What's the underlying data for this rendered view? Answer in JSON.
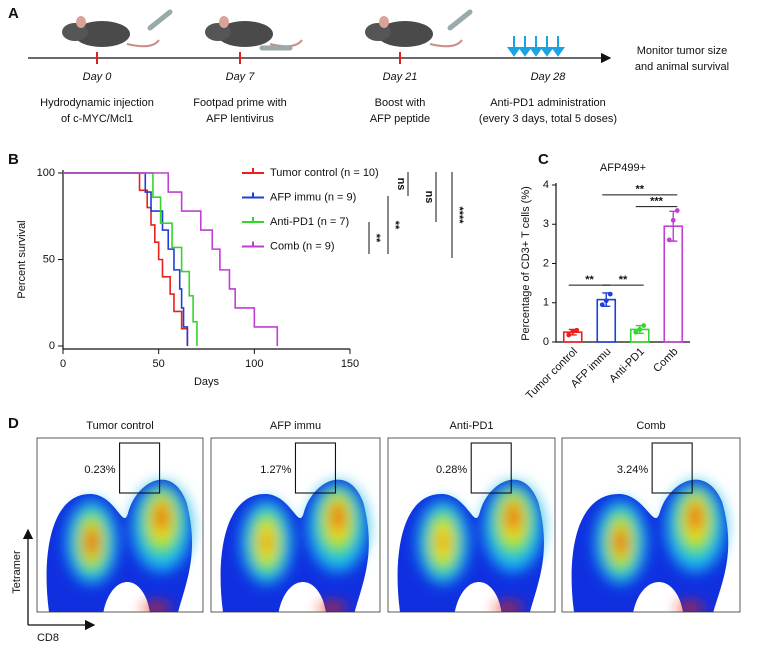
{
  "panel_a": {
    "label": "A",
    "days": [
      {
        "day": "Day 0",
        "description": [
          "Hydrodynamic injection",
          "of  c-MYC/Mcl1"
        ]
      },
      {
        "day": "Day 7",
        "description": [
          "Footpad prime with",
          "AFP lentivirus"
        ]
      },
      {
        "day": "Day 21",
        "description": [
          "Boost with",
          "AFP peptide"
        ]
      },
      {
        "day": "Day 28",
        "description": [
          "Anti-PD1 administration",
          "(every 3 days, total 5 doses)"
        ]
      }
    ],
    "end_label": [
      "Monitor tumor size",
      "and animal survival"
    ]
  },
  "chart_data": [
    {
      "type": "step",
      "label": "B",
      "x_label": "Days",
      "y_label": "Percent survival",
      "xlim": [
        0,
        150
      ],
      "xticks": [
        0,
        50,
        100,
        150
      ],
      "ylim": [
        0,
        100
      ],
      "yticks": [
        0,
        50,
        100
      ],
      "series": [
        {
          "name": "Tumor control (n = 10)",
          "color": "#e8201e",
          "x": [
            0,
            40,
            44,
            46,
            48,
            50,
            52,
            56,
            58,
            62,
            65
          ],
          "values": [
            100,
            90,
            80,
            70,
            60,
            50,
            40,
            30,
            20,
            10,
            0
          ]
        },
        {
          "name": "AFP immu (n = 9)",
          "color": "#1f3fd8",
          "x": [
            0,
            43,
            46,
            52,
            55,
            58,
            61,
            62,
            63,
            65
          ],
          "values": [
            100,
            89,
            78,
            67,
            56,
            44,
            33,
            22,
            11,
            0
          ]
        },
        {
          "name": "Anti-PD1 (n = 7)",
          "color": "#33d62a",
          "x": [
            0,
            47,
            51,
            57,
            62,
            66,
            68,
            70
          ],
          "values": [
            100,
            86,
            71,
            57,
            43,
            29,
            14,
            0
          ]
        },
        {
          "name": "Comb (n = 9)",
          "color": "#c13ed4",
          "x": [
            0,
            55,
            62,
            72,
            78,
            82,
            87,
            90,
            100,
            112
          ],
          "values": [
            100,
            89,
            78,
            67,
            56,
            44,
            33,
            22,
            11,
            0
          ]
        }
      ],
      "annotations": [
        "ns",
        "ns",
        "****",
        "**",
        "**"
      ]
    },
    {
      "type": "bar",
      "label": "C",
      "title": "AFP499+",
      "y_label": "Percentage of CD3+ T cells (%)",
      "categories": [
        "Tumor control",
        "AFP immu",
        "Anti-PD1",
        "Comb"
      ],
      "values": [
        0.25,
        1.08,
        0.32,
        2.95
      ],
      "errors": [
        0.07,
        0.17,
        0.1,
        0.38
      ],
      "points": [
        [
          0.18,
          0.27,
          0.3
        ],
        [
          0.95,
          1.05,
          1.22
        ],
        [
          0.25,
          0.32,
          0.42
        ],
        [
          2.6,
          3.1,
          3.35
        ]
      ],
      "colors": [
        "#e8201e",
        "#1f3fd8",
        "#33d62a",
        "#c13ed4"
      ],
      "ylim": [
        0,
        4
      ],
      "yticks": [
        0,
        1,
        2,
        3,
        4
      ],
      "annotations": [
        "**",
        "**",
        "**",
        "***"
      ]
    }
  ],
  "panel_d": {
    "label": "D",
    "y_axis_label": "Tetramer",
    "x_axis_label": "CD8",
    "plots": [
      {
        "title": "Tumor control",
        "gate_percent": "0.23%"
      },
      {
        "title": "AFP immu",
        "gate_percent": "1.27%"
      },
      {
        "title": "Anti-PD1",
        "gate_percent": "0.28%"
      },
      {
        "title": "Comb",
        "gate_percent": "3.24%"
      }
    ]
  }
}
